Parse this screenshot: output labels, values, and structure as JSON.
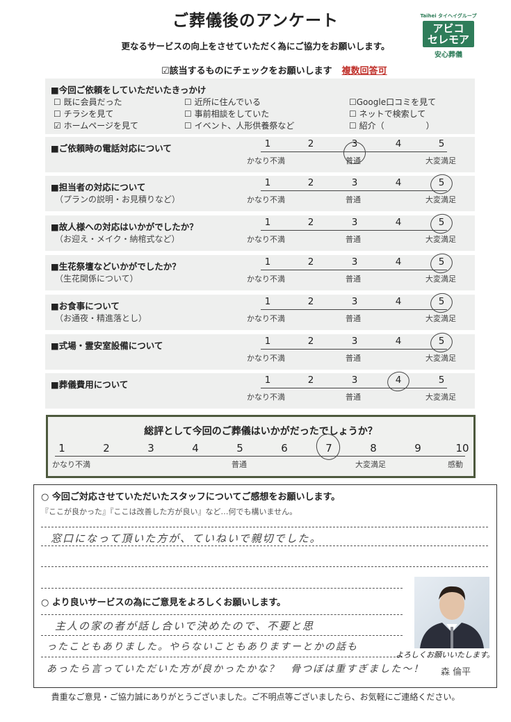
{
  "header": {
    "title": "ご葬儀後のアンケート",
    "subtitle": "更なるサービスの向上をさせていただく為にご協力をお願いします。",
    "instruction": "☑該当するものにチェックをお願いします",
    "multiple": "複数回答可"
  },
  "logo": {
    "group": "Taihei タイヘイグループ",
    "name_line1": "アビコ",
    "name_line2": "セレモア",
    "tagline": "安心葬儀",
    "brand_color": "#2f7d5a"
  },
  "reason": {
    "title": "■今回ご依頼をしていただいたきっかけ",
    "options": [
      {
        "label": "☐ 既に会員だった",
        "checked": false
      },
      {
        "label": "☐ チラシを見て",
        "checked": false
      },
      {
        "label": "☑ ホームページを見て",
        "checked": true
      },
      {
        "label": "☐ 近所に住んでいる",
        "checked": false
      },
      {
        "label": "☐ 事前相談をしていた",
        "checked": false
      },
      {
        "label": "☐ イベント、人形供養祭など",
        "checked": false
      },
      {
        "label": "☐Google口コミを見て",
        "checked": false
      },
      {
        "label": "☐ ネットで検索して",
        "checked": false
      },
      {
        "label": "☐ 紹介（　　　　　）",
        "checked": false
      }
    ]
  },
  "scale_labels": {
    "low": "かなり不満",
    "mid": "普通",
    "high": "大変満足"
  },
  "ratings": [
    {
      "title": "■ご依頼時の電話対応について",
      "sub": "",
      "selected": 3
    },
    {
      "title": "■担当者の対応について",
      "sub": "（プランの説明・お見積りなど）",
      "selected": 5
    },
    {
      "title": "■故人様への対応はいかがでしたか？",
      "sub": "（お迎え・メイク・納棺式など）",
      "selected": 5
    },
    {
      "title": "■生花祭壇などいかがでしたか？",
      "sub": "（生花関係について）",
      "selected": 5
    },
    {
      "title": "■お食事について",
      "sub": "（お通夜・精進落とし）",
      "selected": 5
    },
    {
      "title": "■式場・霊安室設備について",
      "sub": "",
      "selected": 5
    },
    {
      "title": "■葬儀費用について",
      "sub": "",
      "selected": 4
    }
  ],
  "overall": {
    "question": "総評として今回のご葬儀はいかがだったでしょうか？",
    "scale": [
      1,
      2,
      3,
      4,
      5,
      6,
      7,
      8,
      9,
      10
    ],
    "selected": 7,
    "labels": {
      "1": "かなり不満",
      "5": "普通",
      "8": "大変満足",
      "10": "感動"
    }
  },
  "staff": {
    "title": "○ 今回ご対応させていただいたスタッフについてご感想をお願いします。",
    "note": "『ここが良かった』『ここは改善した方が良い』など…何でも構いません。",
    "answer": "窓口になって頂いた方が、ていねいで親切でした。"
  },
  "opinion": {
    "title": "○ より良いサービスの為にご意見をよろしくお願いします。",
    "answer_lines": [
      "主人の家の者が話し合いで決めたので、不要と思",
      "ったこともありました。やらないこともありますーとかの話も",
      "あったら言っていただいた方が良かったかな？　骨つぼは重すぎました〜！"
    ]
  },
  "staff_card": {
    "greeting": "よろしくお願いいたします。",
    "signature": "森 倫平"
  },
  "footer": "貴重なご意見・ご協力誠にありがとうございました。ご不明点等ございましたら、お気軽にご連絡ください。"
}
